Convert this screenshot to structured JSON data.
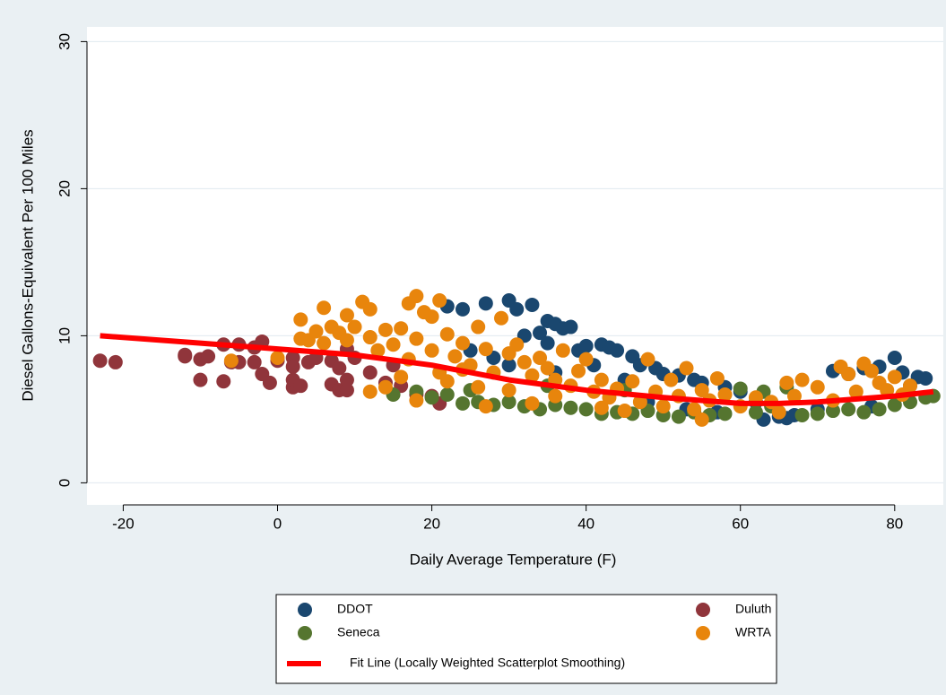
{
  "chart_data": {
    "type": "scatter",
    "x_label": "Daily Average Temperature (F)",
    "y_label": "Diesel Gallons-Equivalent Per 100 Miles",
    "xlim": [
      -24.7,
      86.3
    ],
    "ylim": [
      -1.5,
      31
    ],
    "xticks": [
      -20,
      0,
      20,
      40,
      60,
      80
    ],
    "yticks": [
      0,
      10,
      20,
      30
    ],
    "grid": true,
    "legend": "bottom",
    "series": [
      {
        "name": "DDOT",
        "color": "#1a476f",
        "style": "points",
        "x": [
          22,
          24,
          27,
          30,
          31,
          33,
          34,
          35,
          36,
          37,
          38,
          32,
          35,
          39,
          40,
          42,
          43,
          44,
          46,
          47,
          49,
          50,
          52,
          54,
          55,
          58,
          60,
          62,
          63,
          65,
          67,
          70,
          72,
          74,
          76,
          78,
          80,
          81,
          83,
          84,
          36,
          41,
          45,
          25,
          28,
          30,
          48,
          53,
          57,
          66,
          77,
          82
        ],
        "values": [
          12.0,
          11.8,
          12.2,
          12.4,
          11.8,
          12.1,
          10.2,
          11.0,
          10.8,
          10.5,
          10.6,
          10.0,
          9.5,
          9.0,
          9.3,
          9.4,
          9.2,
          9.0,
          8.6,
          8.0,
          7.8,
          7.4,
          7.3,
          7.0,
          6.8,
          6.5,
          6.2,
          5.5,
          4.3,
          4.5,
          4.6,
          5.0,
          7.6,
          7.4,
          7.8,
          7.9,
          8.5,
          7.5,
          7.2,
          7.1,
          7.5,
          8.0,
          7.0,
          9.0,
          8.5,
          8.0,
          5.5,
          5.0,
          4.8,
          4.4,
          5.2,
          6.6
        ]
      },
      {
        "name": "Duluth",
        "color": "#90353b",
        "style": "points",
        "x": [
          -23,
          -21,
          -12,
          -12,
          -10,
          -10,
          -9,
          -7,
          -7,
          -6,
          -5,
          -5,
          -3,
          -3,
          -2,
          -2,
          -1,
          0,
          2,
          2,
          2,
          2,
          3,
          4,
          5,
          7,
          7,
          8,
          8,
          9,
          9,
          9,
          10,
          14,
          16,
          18,
          20,
          21,
          15,
          12
        ],
        "values": [
          8.3,
          8.2,
          8.6,
          8.7,
          8.4,
          7.0,
          8.6,
          9.4,
          6.9,
          8.2,
          9.4,
          8.2,
          9.2,
          8.2,
          9.6,
          7.4,
          6.8,
          8.3,
          8.5,
          6.5,
          7.0,
          7.9,
          6.6,
          8.2,
          8.5,
          6.7,
          8.3,
          6.3,
          7.8,
          6.3,
          7.0,
          9.1,
          8.5,
          6.8,
          6.6,
          6.0,
          5.9,
          5.4,
          8.0,
          7.5
        ]
      },
      {
        "name": "Seneca",
        "color": "#55752f",
        "style": "points",
        "x": [
          15,
          18,
          20,
          22,
          24,
          26,
          28,
          30,
          32,
          34,
          36,
          38,
          40,
          42,
          44,
          46,
          48,
          50,
          52,
          54,
          56,
          58,
          60,
          62,
          64,
          66,
          68,
          70,
          72,
          74,
          76,
          78,
          80,
          82,
          84,
          85,
          63,
          45,
          35,
          25
        ],
        "values": [
          6.0,
          6.2,
          5.8,
          6.0,
          5.4,
          5.5,
          5.3,
          5.5,
          5.2,
          5.0,
          5.3,
          5.1,
          5.0,
          4.7,
          4.8,
          4.7,
          4.9,
          4.6,
          4.5,
          4.8,
          4.6,
          4.7,
          6.4,
          4.8,
          5.2,
          6.5,
          4.6,
          4.7,
          4.9,
          5.0,
          4.8,
          5.0,
          5.3,
          5.5,
          5.8,
          5.9,
          6.2,
          6.3,
          6.6,
          6.3
        ]
      },
      {
        "name": "WRTA",
        "color": "#e8850c",
        "style": "points",
        "x": [
          -6,
          0,
          3,
          3,
          4,
          5,
          6,
          6,
          7,
          8,
          9,
          9,
          10,
          11,
          12,
          12,
          13,
          14,
          15,
          16,
          17,
          18,
          18,
          19,
          20,
          20,
          21,
          22,
          23,
          24,
          25,
          26,
          27,
          28,
          29,
          30,
          31,
          32,
          33,
          34,
          35,
          36,
          37,
          38,
          39,
          40,
          41,
          42,
          43,
          44,
          46,
          47,
          48,
          49,
          50,
          51,
          52,
          53,
          54,
          55,
          56,
          58,
          60,
          62,
          64,
          66,
          68,
          70,
          72,
          73,
          74,
          75,
          76,
          77,
          78,
          80,
          81,
          82,
          14,
          16,
          18,
          22,
          24,
          27,
          30,
          33,
          12,
          17,
          21,
          26,
          36,
          42,
          57,
          67,
          79,
          45,
          55,
          65
        ],
        "values": [
          8.3,
          8.5,
          9.8,
          11.1,
          9.7,
          10.3,
          11.9,
          9.5,
          10.6,
          10.2,
          9.7,
          11.4,
          10.6,
          12.3,
          11.8,
          9.9,
          9.0,
          10.4,
          9.4,
          10.5,
          12.2,
          12.7,
          9.8,
          11.6,
          11.3,
          9.0,
          12.4,
          10.1,
          8.6,
          9.5,
          8.0,
          10.6,
          9.1,
          7.5,
          11.2,
          8.8,
          9.4,
          8.2,
          7.3,
          8.5,
          7.8,
          7.0,
          9.0,
          6.6,
          7.6,
          8.4,
          6.2,
          7.0,
          5.8,
          6.4,
          6.9,
          5.5,
          8.4,
          6.2,
          5.2,
          7.0,
          5.9,
          7.8,
          5.0,
          6.3,
          5.6,
          6.0,
          5.2,
          5.8,
          5.5,
          6.8,
          7.0,
          6.5,
          5.6,
          7.9,
          7.4,
          6.2,
          8.1,
          7.6,
          6.8,
          7.2,
          6.0,
          6.6,
          6.5,
          7.2,
          5.6,
          6.9,
          7.7,
          5.2,
          6.3,
          5.4,
          6.2,
          8.4,
          7.5,
          6.5,
          5.9,
          5.1,
          7.1,
          5.9,
          6.3,
          4.9,
          4.3,
          4.8
        ]
      },
      {
        "name": "Fit Line (Locally Weighted Scatterplot Smoothing)",
        "color": "#ff0000",
        "style": "line",
        "x": [
          -23,
          -10,
          0,
          10,
          20,
          30,
          40,
          50,
          60,
          65,
          70,
          80,
          85
        ],
        "values": [
          10.0,
          9.5,
          9.1,
          8.7,
          8.0,
          7.0,
          6.3,
          5.8,
          5.4,
          5.4,
          5.5,
          5.9,
          6.2
        ]
      }
    ]
  }
}
